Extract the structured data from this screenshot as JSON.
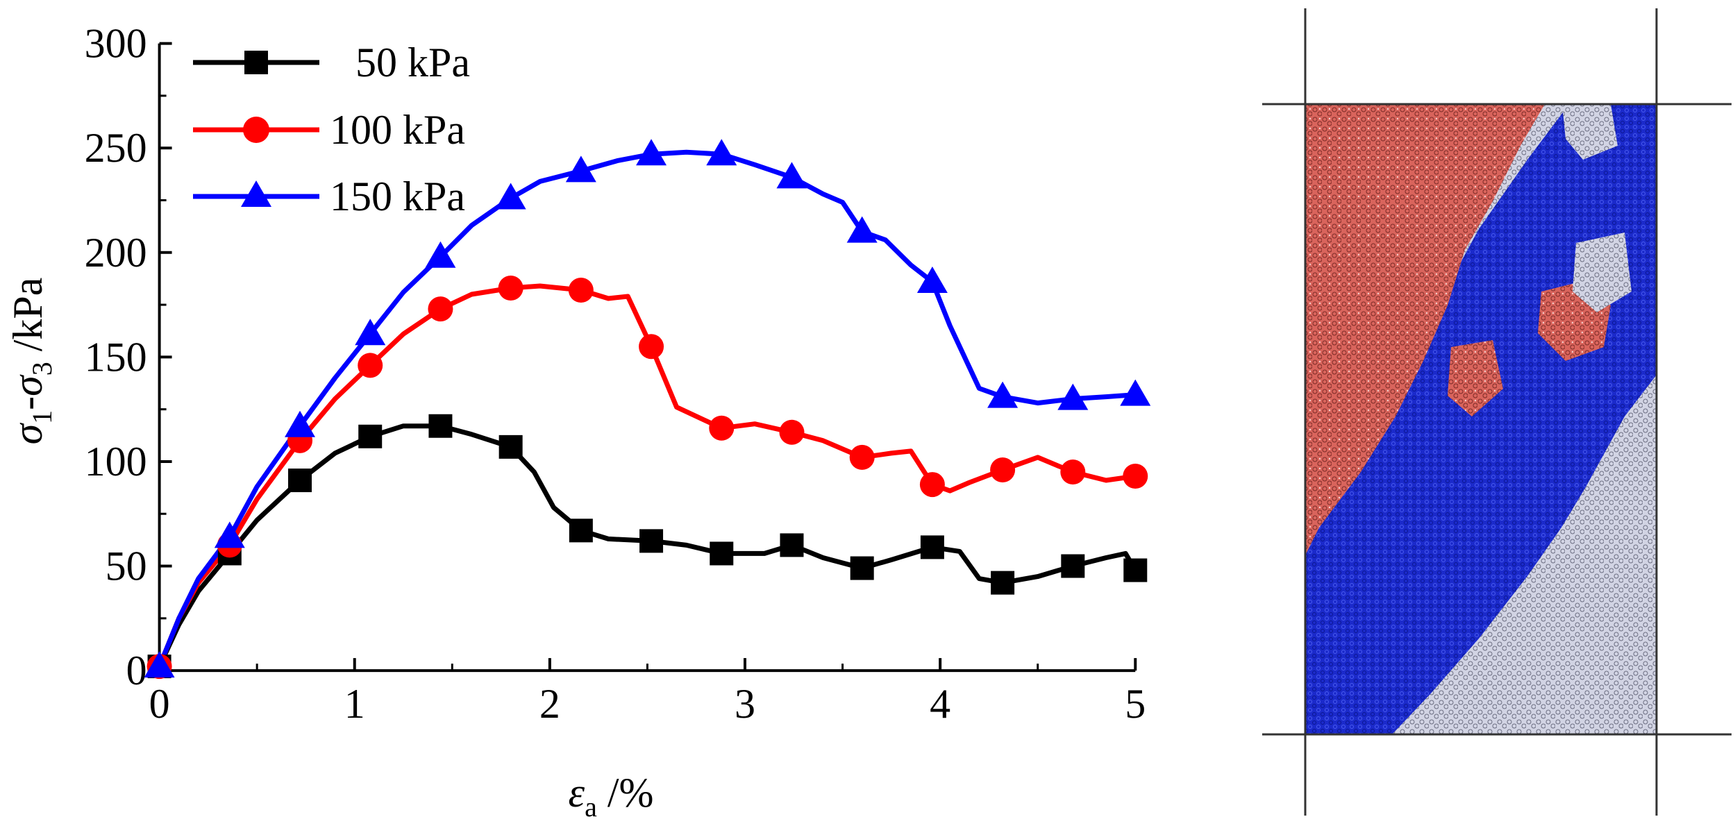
{
  "chart_data": {
    "type": "line",
    "title": "",
    "xlabel": "εa /%",
    "xlabel_parts": {
      "symbol": "ε",
      "subscript": "a",
      "unit": " /%"
    },
    "ylabel": "σ1-σ3 /kPa",
    "ylabel_parts": {
      "s1": "σ",
      "sub1": "1",
      "dash": "-",
      "s3": "σ",
      "sub3": "3",
      "unit": " /kPa"
    },
    "xlim": [
      0,
      5
    ],
    "ylim": [
      0,
      300
    ],
    "x_ticks": [
      0,
      1,
      2,
      3,
      4,
      5
    ],
    "y_ticks": [
      0,
      50,
      100,
      150,
      200,
      250,
      300
    ],
    "grid": false,
    "legend_position": "top-left",
    "series": [
      {
        "name": "50 kPa",
        "color": "#000000",
        "marker": "square",
        "x": [
          0,
          0.1,
          0.2,
          0.36,
          0.5,
          0.72,
          0.9,
          1.08,
          1.25,
          1.44,
          1.6,
          1.8,
          1.92,
          2.02,
          2.16,
          2.3,
          2.52,
          2.7,
          2.88,
          3.1,
          3.24,
          3.4,
          3.6,
          3.75,
          3.96,
          4.1,
          4.2,
          4.32,
          4.5,
          4.68,
          4.85,
          4.95,
          5.0
        ],
        "y": [
          2,
          22,
          38,
          56,
          72,
          91,
          104,
          112,
          117,
          117,
          113,
          107,
          95,
          78,
          67,
          63,
          62,
          60,
          56,
          56,
          60,
          54,
          49,
          53,
          59,
          57,
          44,
          42,
          45,
          50,
          54,
          56,
          48
        ],
        "marker_x": [
          0,
          0.36,
          0.72,
          1.08,
          1.44,
          1.8,
          2.16,
          2.52,
          2.88,
          3.24,
          3.6,
          3.96,
          4.32,
          4.68,
          5.0
        ],
        "marker_y": [
          2,
          56,
          91,
          112,
          117,
          107,
          67,
          62,
          56,
          60,
          49,
          59,
          42,
          50,
          48
        ]
      },
      {
        "name": "100 kPa",
        "color": "#ff0000",
        "marker": "circle",
        "x": [
          0,
          0.1,
          0.2,
          0.36,
          0.5,
          0.72,
          0.9,
          1.08,
          1.25,
          1.44,
          1.6,
          1.8,
          1.95,
          2.16,
          2.3,
          2.4,
          2.52,
          2.65,
          2.88,
          3.05,
          3.24,
          3.4,
          3.6,
          3.75,
          3.85,
          3.96,
          4.05,
          4.15,
          4.32,
          4.5,
          4.68,
          4.85,
          5.0
        ],
        "y": [
          2,
          25,
          42,
          60,
          82,
          110,
          130,
          146,
          161,
          173,
          180,
          183,
          184,
          182,
          178,
          179,
          155,
          126,
          116,
          118,
          114,
          110,
          102,
          104,
          105,
          89,
          86,
          90,
          96,
          102,
          95,
          91,
          93
        ],
        "marker_x": [
          0,
          0.36,
          0.72,
          1.08,
          1.44,
          1.8,
          2.16,
          2.52,
          2.88,
          3.24,
          3.6,
          3.96,
          4.32,
          4.68,
          5.0
        ],
        "marker_y": [
          2,
          60,
          110,
          146,
          173,
          183,
          182,
          155,
          116,
          114,
          102,
          89,
          96,
          95,
          93
        ]
      },
      {
        "name": "150 kPa",
        "color": "#0000ff",
        "marker": "triangle",
        "x": [
          0,
          0.1,
          0.2,
          0.36,
          0.5,
          0.72,
          0.9,
          1.08,
          1.25,
          1.44,
          1.6,
          1.8,
          1.95,
          2.16,
          2.35,
          2.52,
          2.7,
          2.88,
          3.05,
          3.24,
          3.4,
          3.5,
          3.6,
          3.72,
          3.85,
          3.96,
          4.05,
          4.2,
          4.32,
          4.5,
          4.68,
          4.85,
          5.0
        ],
        "y": [
          2,
          25,
          44,
          64,
          88,
          117,
          140,
          161,
          181,
          198,
          213,
          226,
          234,
          239,
          244,
          247,
          248,
          247,
          242,
          236,
          228,
          224,
          210,
          206,
          194,
          186,
          165,
          135,
          131,
          128,
          130,
          131,
          132
        ],
        "marker_x": [
          0,
          0.36,
          0.72,
          1.08,
          1.44,
          1.8,
          2.16,
          2.52,
          2.88,
          3.24,
          3.6,
          3.96,
          4.32,
          4.68,
          5.0
        ],
        "marker_y": [
          2,
          64,
          117,
          161,
          198,
          226,
          239,
          247,
          247,
          236,
          210,
          186,
          131,
          130,
          132
        ]
      }
    ]
  },
  "specimen_panel": {
    "colors": {
      "red_region": "#d9645c",
      "blue_band": "#1b2acb",
      "gray_region": "#d2d4e4",
      "frame_line": "#333333"
    }
  }
}
